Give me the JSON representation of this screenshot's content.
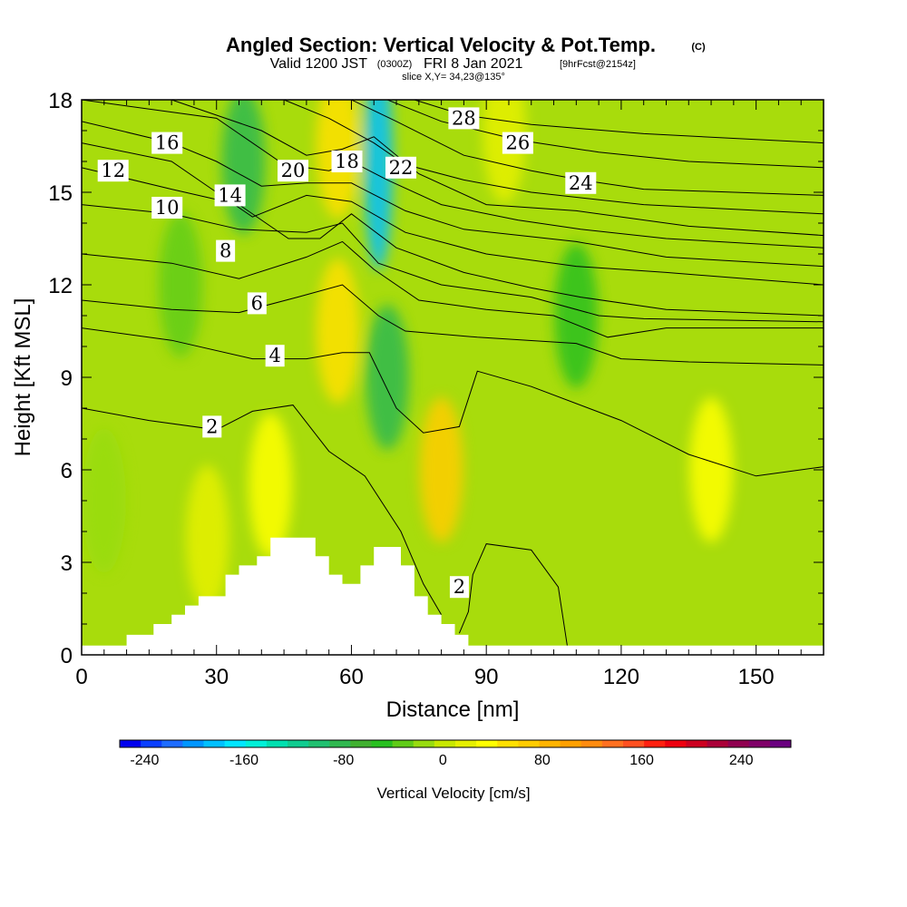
{
  "header": {
    "title": "Angled Section: Vertical Velocity & Pot.Temp.",
    "title_mark": "(C)",
    "valid_prefix": "Valid 1200 JST",
    "valid_utc": "(0300Z)",
    "valid_date": "FRI 8 Jan 2021",
    "forecast": "[9hrFcst@2154z]",
    "slice": "slice X,Y= 34,23@135°"
  },
  "chart_data": {
    "type": "heatmap",
    "xlabel": "Distance [nm]",
    "ylabel": "Height [Kft MSL]",
    "xlim": [
      0,
      165
    ],
    "ylim": [
      0,
      18
    ],
    "x_ticks": [
      0,
      30,
      60,
      90,
      120,
      150
    ],
    "y_ticks": [
      0,
      3,
      6,
      9,
      12,
      15,
      18
    ],
    "field": "Vertical Velocity",
    "colorbar": {
      "title": "Vertical Velocity [cm/s]",
      "tick_labels": [
        -240,
        -160,
        -80,
        0,
        80,
        160,
        240
      ],
      "range": [
        -260,
        280
      ],
      "colors": [
        "#0000ee",
        "#0b3fff",
        "#1e6cff",
        "#0096ff",
        "#00c0ff",
        "#00e6ff",
        "#00f0d8",
        "#00e0b0",
        "#10cc90",
        "#20c070",
        "#30b850",
        "#40b030",
        "#28c020",
        "#60cc18",
        "#98dc10",
        "#c8e800",
        "#e6f000",
        "#ffff00",
        "#ffe000",
        "#ffcc00",
        "#ffb400",
        "#ffa000",
        "#ff8c10",
        "#ff7020",
        "#ff5020",
        "#ff2010",
        "#ee0010",
        "#cc0020",
        "#aa0038",
        "#900050",
        "#800068",
        "#6a0080"
      ]
    },
    "velocity_features": [
      {
        "x": 80,
        "z": 6.0,
        "value": 75
      },
      {
        "x": 57,
        "z": 10.5,
        "value": 45
      },
      {
        "x": 57,
        "z": 16.5,
        "value": 45
      },
      {
        "x": 42,
        "z": 5.5,
        "value": 30
      },
      {
        "x": 28,
        "z": 3.8,
        "value": 25
      },
      {
        "x": 140,
        "z": 6.0,
        "value": 30
      },
      {
        "x": 94,
        "z": 17.0,
        "value": 20
      },
      {
        "x": 36,
        "z": 16.0,
        "value": -75
      },
      {
        "x": 66,
        "z": 16.0,
        "value": -180
      },
      {
        "x": 68,
        "z": 9.0,
        "value": -90
      },
      {
        "x": 110,
        "z": 11.0,
        "value": -45
      },
      {
        "x": 22,
        "z": 12.0,
        "value": -30
      },
      {
        "x": 5,
        "z": 5.0,
        "value": -20
      }
    ],
    "terrain": [
      [
        0,
        0.3
      ],
      [
        10,
        0.3
      ],
      [
        10,
        0.65
      ],
      [
        16,
        0.65
      ],
      [
        16,
        1.0
      ],
      [
        20,
        1.0
      ],
      [
        20,
        1.3
      ],
      [
        23,
        1.3
      ],
      [
        23,
        1.6
      ],
      [
        26,
        1.6
      ],
      [
        26,
        1.9
      ],
      [
        32,
        1.9
      ],
      [
        32,
        2.6
      ],
      [
        35,
        2.6
      ],
      [
        35,
        2.9
      ],
      [
        39,
        2.9
      ],
      [
        39,
        3.2
      ],
      [
        42,
        3.2
      ],
      [
        42,
        3.8
      ],
      [
        52,
        3.8
      ],
      [
        52,
        3.2
      ],
      [
        55,
        3.2
      ],
      [
        55,
        2.6
      ],
      [
        58,
        2.6
      ],
      [
        58,
        2.3
      ],
      [
        62,
        2.3
      ],
      [
        62,
        2.9
      ],
      [
        65,
        2.9
      ],
      [
        65,
        3.5
      ],
      [
        71,
        3.5
      ],
      [
        71,
        2.9
      ],
      [
        74,
        2.9
      ],
      [
        74,
        1.9
      ],
      [
        77,
        1.9
      ],
      [
        77,
        1.3
      ],
      [
        80,
        1.3
      ],
      [
        80,
        1.0
      ],
      [
        83,
        1.0
      ],
      [
        83,
        0.65
      ],
      [
        86,
        0.65
      ],
      [
        86,
        0.3
      ],
      [
        165,
        0.3
      ]
    ],
    "theta_contours": [
      {
        "label": "2",
        "label_at": [
          29,
          7.4
        ],
        "points": [
          [
            0,
            8.0
          ],
          [
            15,
            7.6
          ],
          [
            30,
            7.3
          ],
          [
            38,
            7.9
          ],
          [
            47,
            8.1
          ],
          [
            55,
            6.6
          ],
          [
            63,
            5.8
          ],
          [
            71,
            4.0
          ],
          [
            76,
            2.3
          ],
          [
            80,
            1.3
          ]
        ]
      },
      {
        "label": "2",
        "label_at": [
          84,
          2.2
        ],
        "points": [
          [
            84,
            0.7
          ],
          [
            86,
            1.4
          ],
          [
            87,
            2.6
          ],
          [
            90,
            3.6
          ],
          [
            100,
            3.4
          ],
          [
            106,
            2.2
          ],
          [
            108,
            0.3
          ]
        ]
      },
      {
        "label": "4",
        "label_at": [
          43,
          9.7
        ],
        "points": [
          [
            0,
            10.6
          ],
          [
            20,
            10.2
          ],
          [
            38,
            9.6
          ],
          [
            50,
            9.6
          ],
          [
            58,
            9.8
          ],
          [
            64,
            9.8
          ],
          [
            70,
            8.0
          ],
          [
            76,
            7.2
          ],
          [
            84,
            7.4
          ],
          [
            88,
            9.2
          ],
          [
            100,
            8.7
          ],
          [
            120,
            7.6
          ],
          [
            135,
            6.5
          ],
          [
            150,
            5.8
          ],
          [
            165,
            6.1
          ]
        ]
      },
      {
        "label": "6",
        "label_at": [
          39,
          11.4
        ],
        "points": [
          [
            0,
            11.5
          ],
          [
            20,
            11.2
          ],
          [
            35,
            11.1
          ],
          [
            48,
            11.6
          ],
          [
            58,
            12.0
          ],
          [
            66,
            11.0
          ],
          [
            72,
            10.5
          ],
          [
            88,
            10.3
          ],
          [
            110,
            10.1
          ],
          [
            120,
            9.6
          ],
          [
            135,
            9.5
          ],
          [
            165,
            9.4
          ]
        ]
      },
      {
        "label": "8",
        "label_at": [
          32,
          13.1
        ],
        "points": [
          [
            0,
            13.0
          ],
          [
            20,
            12.7
          ],
          [
            35,
            12.2
          ],
          [
            50,
            12.9
          ],
          [
            58,
            13.4
          ],
          [
            65,
            12.5
          ],
          [
            75,
            11.5
          ],
          [
            90,
            11.2
          ],
          [
            105,
            11.0
          ],
          [
            117,
            10.3
          ],
          [
            130,
            10.6
          ],
          [
            165,
            10.6
          ]
        ]
      },
      {
        "label": "10",
        "label_at": [
          19,
          14.5
        ],
        "points": [
          [
            0,
            14.6
          ],
          [
            20,
            14.3
          ],
          [
            35,
            13.8
          ],
          [
            50,
            13.7
          ],
          [
            58,
            14.0
          ],
          [
            66,
            12.7
          ],
          [
            80,
            12.0
          ],
          [
            100,
            11.6
          ],
          [
            115,
            11.0
          ],
          [
            125,
            10.9
          ],
          [
            165,
            10.8
          ]
        ]
      },
      {
        "label": "12",
        "label_at": [
          7,
          15.7
        ],
        "points": [
          [
            0,
            15.8
          ],
          [
            20,
            15.1
          ],
          [
            35,
            14.6
          ],
          [
            46,
            13.5
          ],
          [
            53,
            13.5
          ],
          [
            60,
            14.3
          ],
          [
            70,
            13.2
          ],
          [
            85,
            12.4
          ],
          [
            100,
            11.9
          ],
          [
            111,
            11.6
          ],
          [
            130,
            11.2
          ],
          [
            165,
            11.0
          ]
        ]
      },
      {
        "label": "14",
        "label_at": [
          33,
          14.9
        ],
        "points": [
          [
            0,
            16.6
          ],
          [
            20,
            16.0
          ],
          [
            30,
            15.0
          ],
          [
            38,
            14.2
          ],
          [
            50,
            14.9
          ],
          [
            60,
            14.7
          ],
          [
            72,
            13.7
          ],
          [
            90,
            13.0
          ],
          [
            110,
            12.6
          ],
          [
            130,
            12.4
          ],
          [
            165,
            12.0
          ]
        ]
      },
      {
        "label": "16",
        "label_at": [
          19,
          16.6
        ],
        "points": [
          [
            0,
            17.3
          ],
          [
            20,
            16.6
          ],
          [
            30,
            16.0
          ],
          [
            40,
            15.2
          ],
          [
            50,
            15.3
          ],
          [
            60,
            15.3
          ],
          [
            72,
            14.4
          ],
          [
            85,
            13.8
          ],
          [
            110,
            13.4
          ],
          [
            130,
            12.9
          ],
          [
            165,
            12.6
          ]
        ]
      },
      {
        "label": "18",
        "label_at": [
          59,
          16.0
        ],
        "points": [
          [
            0,
            18.0
          ],
          [
            30,
            17.4
          ],
          [
            45,
            15.9
          ],
          [
            55,
            15.7
          ],
          [
            60,
            16.0
          ],
          [
            68,
            15.4
          ],
          [
            80,
            14.6
          ],
          [
            97,
            14.1
          ],
          [
            111,
            13.8
          ],
          [
            130,
            13.5
          ],
          [
            165,
            13.2
          ]
        ]
      },
      {
        "label": "20",
        "label_at": [
          47,
          15.7
        ],
        "points": [
          [
            20,
            18.0
          ],
          [
            40,
            17.0
          ],
          [
            50,
            16.2
          ],
          [
            58,
            16.4
          ],
          [
            65,
            16.8
          ],
          [
            75,
            15.6
          ],
          [
            90,
            14.6
          ],
          [
            110,
            14.4
          ],
          [
            135,
            13.9
          ],
          [
            165,
            13.6
          ]
        ]
      },
      {
        "label": "22",
        "label_at": [
          71,
          15.8
        ],
        "points": [
          [
            45,
            18.0
          ],
          [
            55,
            17.4
          ],
          [
            65,
            16.6
          ],
          [
            72,
            15.9
          ],
          [
            85,
            15.4
          ],
          [
            100,
            15.0
          ],
          [
            125,
            14.6
          ],
          [
            165,
            14.3
          ]
        ]
      },
      {
        "label": "24",
        "label_at": [
          111,
          15.3
        ],
        "points": [
          [
            60,
            18.0
          ],
          [
            70,
            17.3
          ],
          [
            85,
            16.2
          ],
          [
            100,
            15.7
          ],
          [
            111,
            15.4
          ],
          [
            125,
            15.1
          ],
          [
            165,
            14.9
          ]
        ]
      },
      {
        "label": "26",
        "label_at": [
          97,
          16.6
        ],
        "points": [
          [
            68,
            18.0
          ],
          [
            80,
            17.3
          ],
          [
            97,
            16.7
          ],
          [
            115,
            16.3
          ],
          [
            135,
            16.0
          ],
          [
            165,
            15.8
          ]
        ]
      },
      {
        "label": "28",
        "label_at": [
          85,
          17.4
        ],
        "points": [
          [
            74,
            18.0
          ],
          [
            85,
            17.5
          ],
          [
            100,
            17.2
          ],
          [
            125,
            16.9
          ],
          [
            165,
            16.6
          ]
        ]
      }
    ]
  }
}
